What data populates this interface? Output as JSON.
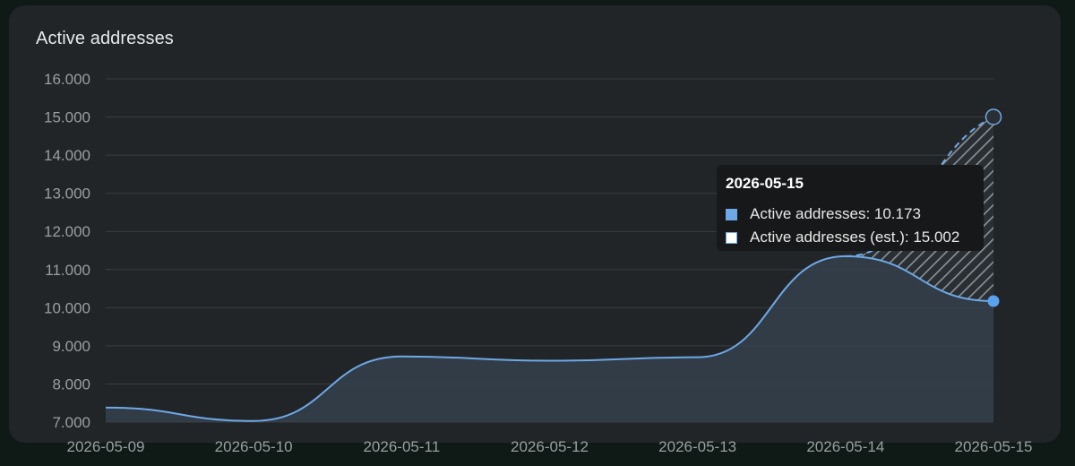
{
  "chart_data": {
    "type": "area",
    "title": "Active addresses",
    "categories": [
      "2026-05-09",
      "2026-05-10",
      "2026-05-11",
      "2026-05-12",
      "2026-05-13",
      "2026-05-14",
      "2026-05-15"
    ],
    "y_tick_labels": [
      "7.000",
      "8.000",
      "9.000",
      "10.000",
      "11.000",
      "12.000",
      "13.000",
      "14.000",
      "15.000",
      "16.000"
    ],
    "y_ticks": [
      7000,
      8000,
      9000,
      10000,
      11000,
      12000,
      13000,
      14000,
      15000,
      16000
    ],
    "ylim": [
      7000,
      16000
    ],
    "grid": true,
    "series": [
      {
        "name": "Active addresses",
        "values": [
          7380,
          7030,
          8720,
          8610,
          8700,
          11350,
          10173
        ],
        "color": "#6ea8e6",
        "style": "solid-area"
      },
      {
        "name": "Active addresses (est.)",
        "values": [
          null,
          null,
          null,
          null,
          null,
          11350,
          15002
        ],
        "color": "#6ea8e6",
        "style": "dashed-hatched"
      }
    ],
    "tooltip": {
      "date": "2026-05-15",
      "rows": [
        {
          "label": "Active addresses: 10.173",
          "swatch": "primary"
        },
        {
          "label": "Active addresses (est.): 15.002",
          "swatch": "est"
        }
      ]
    }
  },
  "colors": {
    "background": "#0f1a16",
    "card": "#222527",
    "grid": "#3a3e41",
    "axis_text": "#9a9ea2",
    "line": "#6ea8e6",
    "area_fill": "#34414d",
    "tooltip_bg": "#161819"
  }
}
